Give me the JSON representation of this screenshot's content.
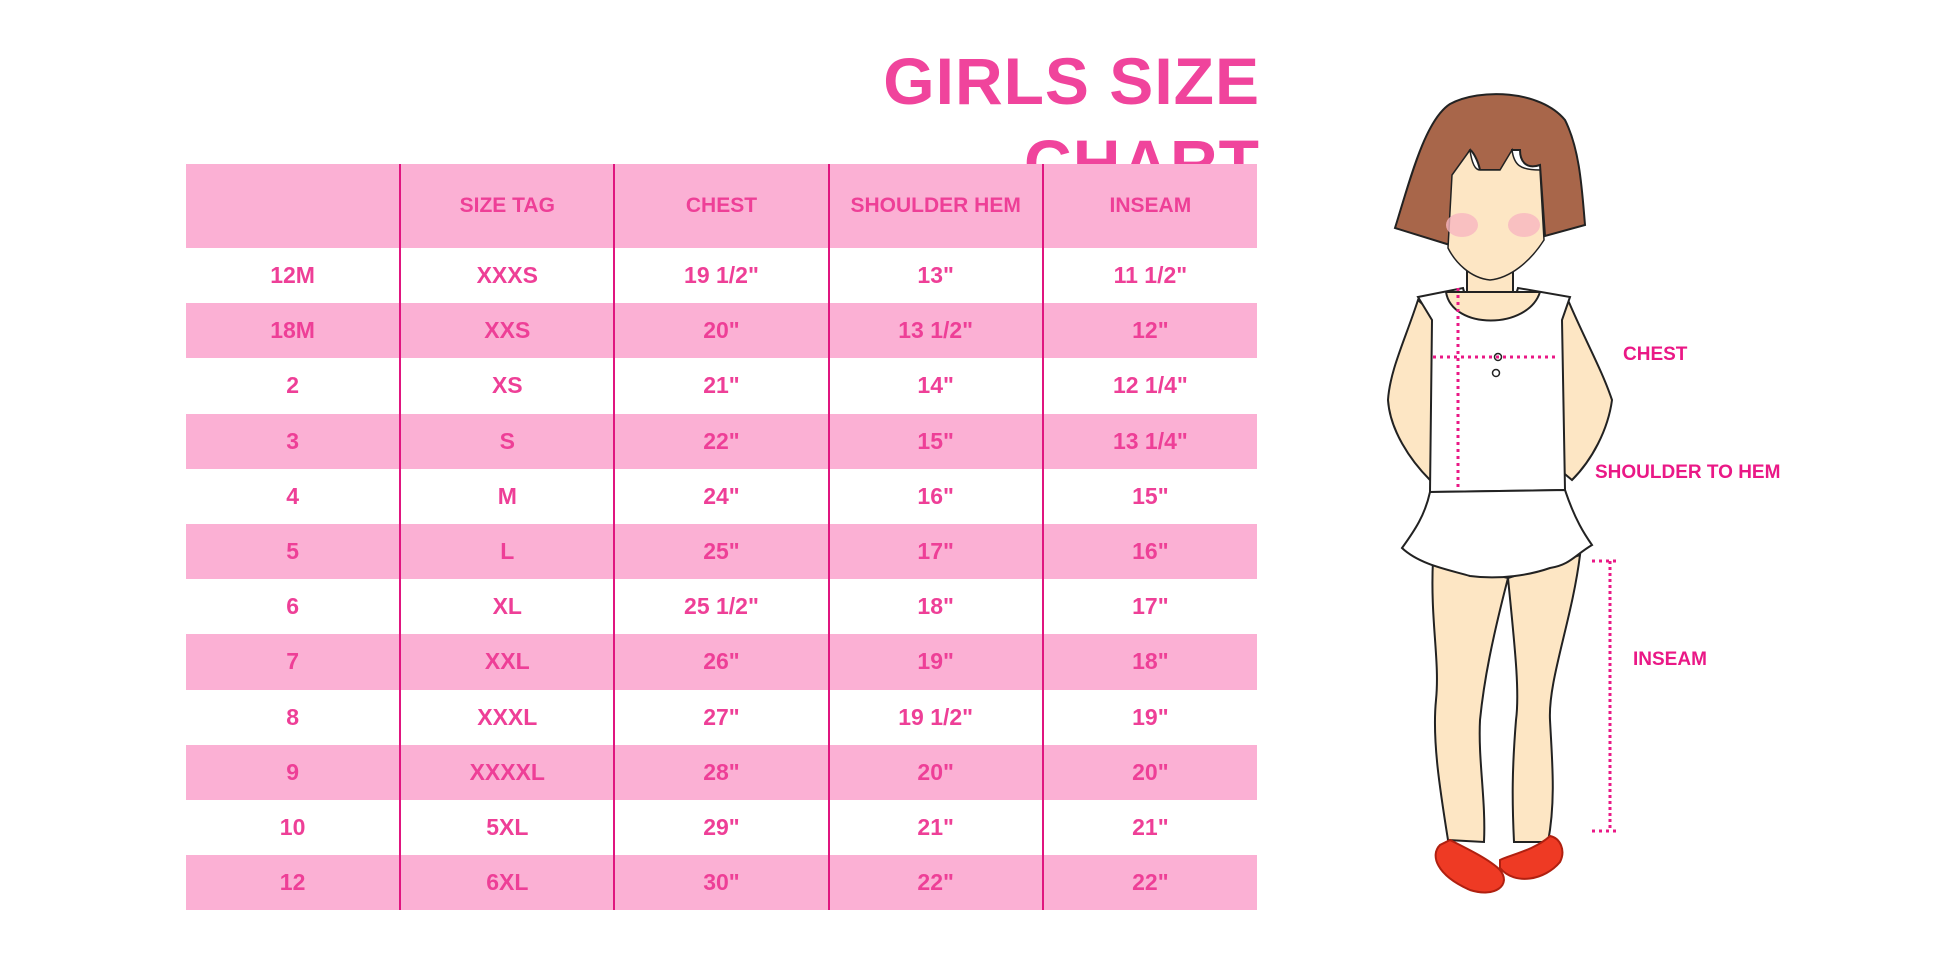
{
  "title": "GIRLS SIZE CHART",
  "table": {
    "headers": [
      "",
      "SIZE TAG",
      "CHEST",
      "SHOULDER HEM",
      "INSEAM"
    ],
    "rows": [
      [
        "12M",
        "XXXS",
        "19 1/2\"",
        "13\"",
        "11 1/2\""
      ],
      [
        "18M",
        "XXS",
        "20\"",
        "13 1/2\"",
        "12\""
      ],
      [
        "2",
        "XS",
        "21\"",
        "14\"",
        "12 1/4\""
      ],
      [
        "3",
        "S",
        "22\"",
        "15\"",
        "13 1/4\""
      ],
      [
        "4",
        "M",
        "24\"",
        "16\"",
        "15\""
      ],
      [
        "5",
        "L",
        "25\"",
        "17\"",
        "16\""
      ],
      [
        "6",
        "XL",
        "25 1/2\"",
        "18\"",
        "17\""
      ],
      [
        "7",
        "XXL",
        "26\"",
        "19\"",
        "18\""
      ],
      [
        "8",
        "XXXL",
        "27\"",
        "19 1/2\"",
        "19\""
      ],
      [
        "9",
        "XXXXL",
        "28\"",
        "20\"",
        "20\""
      ],
      [
        "10",
        "5XL",
        "29\"",
        "21\"",
        "21\""
      ],
      [
        "12",
        "6XL",
        "30\"",
        "22\"",
        "22\""
      ]
    ]
  },
  "figure": {
    "labels": {
      "chest": "CHEST",
      "shoulder": "SHOULDER TO HEM",
      "inseam": "INSEAM"
    }
  },
  "colors": {
    "accent": "#ee3f97",
    "row_fill": "#fbb0d4",
    "divider": "#e0157f",
    "hair": "#a8664a",
    "skin": "#fde6c4",
    "shoes": "#ee3a24"
  }
}
